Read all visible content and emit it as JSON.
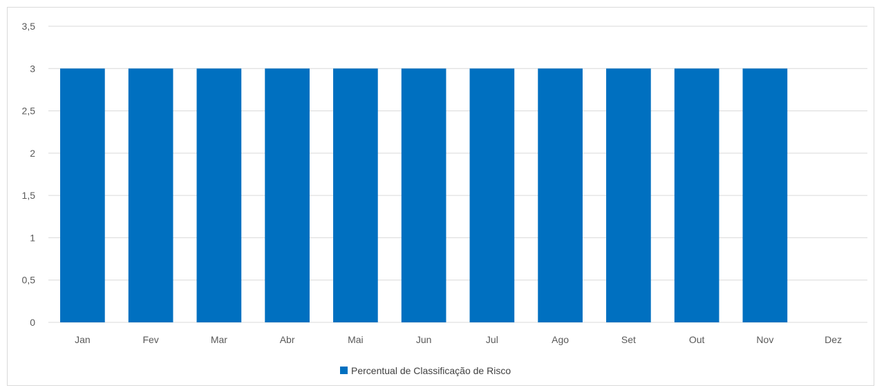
{
  "chart_data": {
    "type": "bar",
    "title": "",
    "xlabel": "",
    "ylabel": "",
    "categories": [
      "Jan",
      "Fev",
      "Mar",
      "Abr",
      "Mai",
      "Jun",
      "Jul",
      "Ago",
      "Set",
      "Out",
      "Nov",
      "Dez"
    ],
    "series": [
      {
        "name": "Percentual de Classificação de Risco",
        "color": "#0070c0",
        "values": [
          3,
          3,
          3,
          3,
          3,
          3,
          3,
          3,
          3,
          3,
          3,
          null
        ]
      }
    ],
    "ylim": [
      0,
      3.5
    ],
    "yticks": [
      "0",
      "0,5",
      "1",
      "1,5",
      "2",
      "2,5",
      "3",
      "3,5"
    ],
    "yticks_values": [
      0,
      0.5,
      1,
      1.5,
      2,
      2.5,
      3,
      3.5
    ],
    "grid": true,
    "legend_position": "bottom",
    "colors": {
      "bar": "#0070c0",
      "grid": "#d9d9d9",
      "text": "#595959"
    }
  }
}
